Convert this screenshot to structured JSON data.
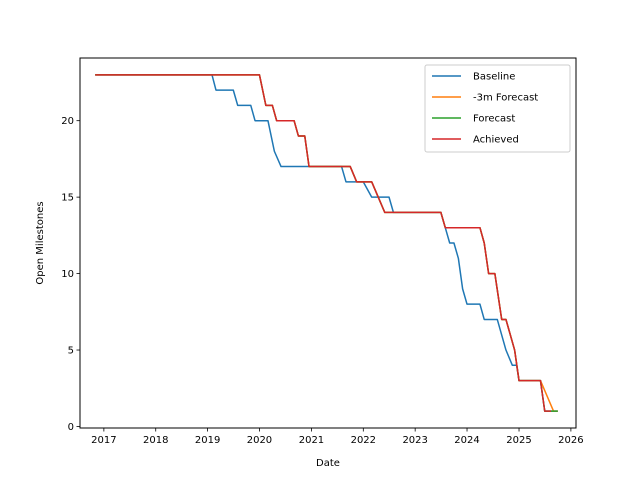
{
  "chart_data": {
    "type": "line",
    "xlabel": "Date",
    "ylabel": "Open Milestones",
    "x_ticks": [
      "2017",
      "2018",
      "2019",
      "2020",
      "2021",
      "2022",
      "2023",
      "2024",
      "2025",
      "2026"
    ],
    "y_ticks": [
      "0",
      "5",
      "10",
      "15",
      "20"
    ],
    "xlim": [
      "2016-07-17",
      "2026-02-06"
    ],
    "ylim": [
      -0.1,
      24.1
    ],
    "grid": false,
    "legend_position": "upper right",
    "series": [
      {
        "name": "Baseline",
        "color": "#1f77b4",
        "points": [
          [
            "2016-11-01",
            23
          ],
          [
            "2019-02-01",
            23
          ],
          [
            "2019-03-01",
            22
          ],
          [
            "2019-07-01",
            22
          ],
          [
            "2019-08-01",
            21
          ],
          [
            "2019-11-01",
            21
          ],
          [
            "2019-12-01",
            20
          ],
          [
            "2020-03-01",
            20
          ],
          [
            "2020-04-15",
            18
          ],
          [
            "2020-06-01",
            17
          ],
          [
            "2021-07-01",
            17
          ],
          [
            "2021-08-01",
            17
          ],
          [
            "2021-09-01",
            16
          ],
          [
            "2022-01-01",
            16
          ],
          [
            "2022-03-01",
            15
          ],
          [
            "2022-07-01",
            15
          ],
          [
            "2022-08-01",
            14
          ],
          [
            "2023-06-01",
            14
          ],
          [
            "2023-07-01",
            14
          ],
          [
            "2023-08-01",
            13
          ],
          [
            "2023-09-01",
            12
          ],
          [
            "2023-10-01",
            12
          ],
          [
            "2023-11-01",
            11
          ],
          [
            "2023-12-01",
            9
          ],
          [
            "2024-01-01",
            8
          ],
          [
            "2024-04-01",
            8
          ],
          [
            "2024-05-01",
            7
          ],
          [
            "2024-08-01",
            7
          ],
          [
            "2024-10-01",
            5
          ],
          [
            "2024-11-15",
            4
          ],
          [
            "2024-12-15",
            4
          ],
          [
            "2025-01-01",
            3
          ],
          [
            "2025-06-01",
            3
          ],
          [
            "2025-07-01",
            1
          ],
          [
            "2025-10-01",
            1
          ]
        ]
      },
      {
        "name": "-3m Forecast",
        "color": "#ff7f0e",
        "points": [
          [
            "2016-11-01",
            23
          ],
          [
            "2020-01-01",
            23
          ],
          [
            "2020-02-15",
            21
          ],
          [
            "2020-04-01",
            21
          ],
          [
            "2020-05-01",
            20
          ],
          [
            "2020-09-01",
            20
          ],
          [
            "2020-10-01",
            19
          ],
          [
            "2020-11-15",
            19
          ],
          [
            "2020-12-15",
            17
          ],
          [
            "2021-10-01",
            17
          ],
          [
            "2021-11-15",
            16
          ],
          [
            "2022-03-01",
            16
          ],
          [
            "2022-06-01",
            14
          ],
          [
            "2023-07-01",
            14
          ],
          [
            "2023-08-01",
            13
          ],
          [
            "2024-04-01",
            13
          ],
          [
            "2024-05-01",
            12
          ],
          [
            "2024-06-01",
            10
          ],
          [
            "2024-07-15",
            10
          ],
          [
            "2024-09-01",
            7
          ],
          [
            "2024-10-01",
            7
          ],
          [
            "2024-12-01",
            5
          ],
          [
            "2025-01-01",
            3
          ],
          [
            "2025-06-01",
            3
          ],
          [
            "2025-09-01",
            1
          ],
          [
            "2025-10-01",
            1
          ]
        ]
      },
      {
        "name": "Forecast",
        "color": "#2ca02c",
        "points": [
          [
            "2016-11-01",
            23
          ],
          [
            "2020-01-01",
            23
          ],
          [
            "2020-02-15",
            21
          ],
          [
            "2020-04-01",
            21
          ],
          [
            "2020-05-01",
            20
          ],
          [
            "2020-09-01",
            20
          ],
          [
            "2020-10-01",
            19
          ],
          [
            "2020-11-15",
            19
          ],
          [
            "2020-12-15",
            17
          ],
          [
            "2021-10-01",
            17
          ],
          [
            "2021-11-15",
            16
          ],
          [
            "2022-03-01",
            16
          ],
          [
            "2022-06-01",
            14
          ],
          [
            "2023-07-01",
            14
          ],
          [
            "2023-08-01",
            13
          ],
          [
            "2024-04-01",
            13
          ],
          [
            "2024-05-01",
            12
          ],
          [
            "2024-06-01",
            10
          ],
          [
            "2024-07-15",
            10
          ],
          [
            "2024-09-01",
            7
          ],
          [
            "2024-10-01",
            7
          ],
          [
            "2024-12-01",
            5
          ],
          [
            "2025-01-01",
            3
          ],
          [
            "2025-06-01",
            3
          ],
          [
            "2025-07-01",
            1
          ],
          [
            "2025-10-01",
            1
          ]
        ]
      },
      {
        "name": "Achieved",
        "color": "#d62728",
        "points": [
          [
            "2016-11-01",
            23
          ],
          [
            "2020-01-01",
            23
          ],
          [
            "2020-02-15",
            21
          ],
          [
            "2020-04-01",
            21
          ],
          [
            "2020-05-01",
            20
          ],
          [
            "2020-09-01",
            20
          ],
          [
            "2020-10-01",
            19
          ],
          [
            "2020-11-15",
            19
          ],
          [
            "2020-12-15",
            17
          ],
          [
            "2021-10-01",
            17
          ],
          [
            "2021-11-15",
            16
          ],
          [
            "2022-03-01",
            16
          ],
          [
            "2022-06-01",
            14
          ],
          [
            "2023-07-01",
            14
          ],
          [
            "2023-08-01",
            13
          ],
          [
            "2024-04-01",
            13
          ],
          [
            "2024-05-01",
            12
          ],
          [
            "2024-06-01",
            10
          ],
          [
            "2024-07-15",
            10
          ],
          [
            "2024-09-01",
            7
          ],
          [
            "2024-10-01",
            7
          ],
          [
            "2024-12-01",
            5
          ],
          [
            "2025-01-01",
            3
          ],
          [
            "2025-06-01",
            3
          ],
          [
            "2025-07-01",
            1
          ],
          [
            "2025-08-15",
            1
          ]
        ]
      }
    ]
  }
}
